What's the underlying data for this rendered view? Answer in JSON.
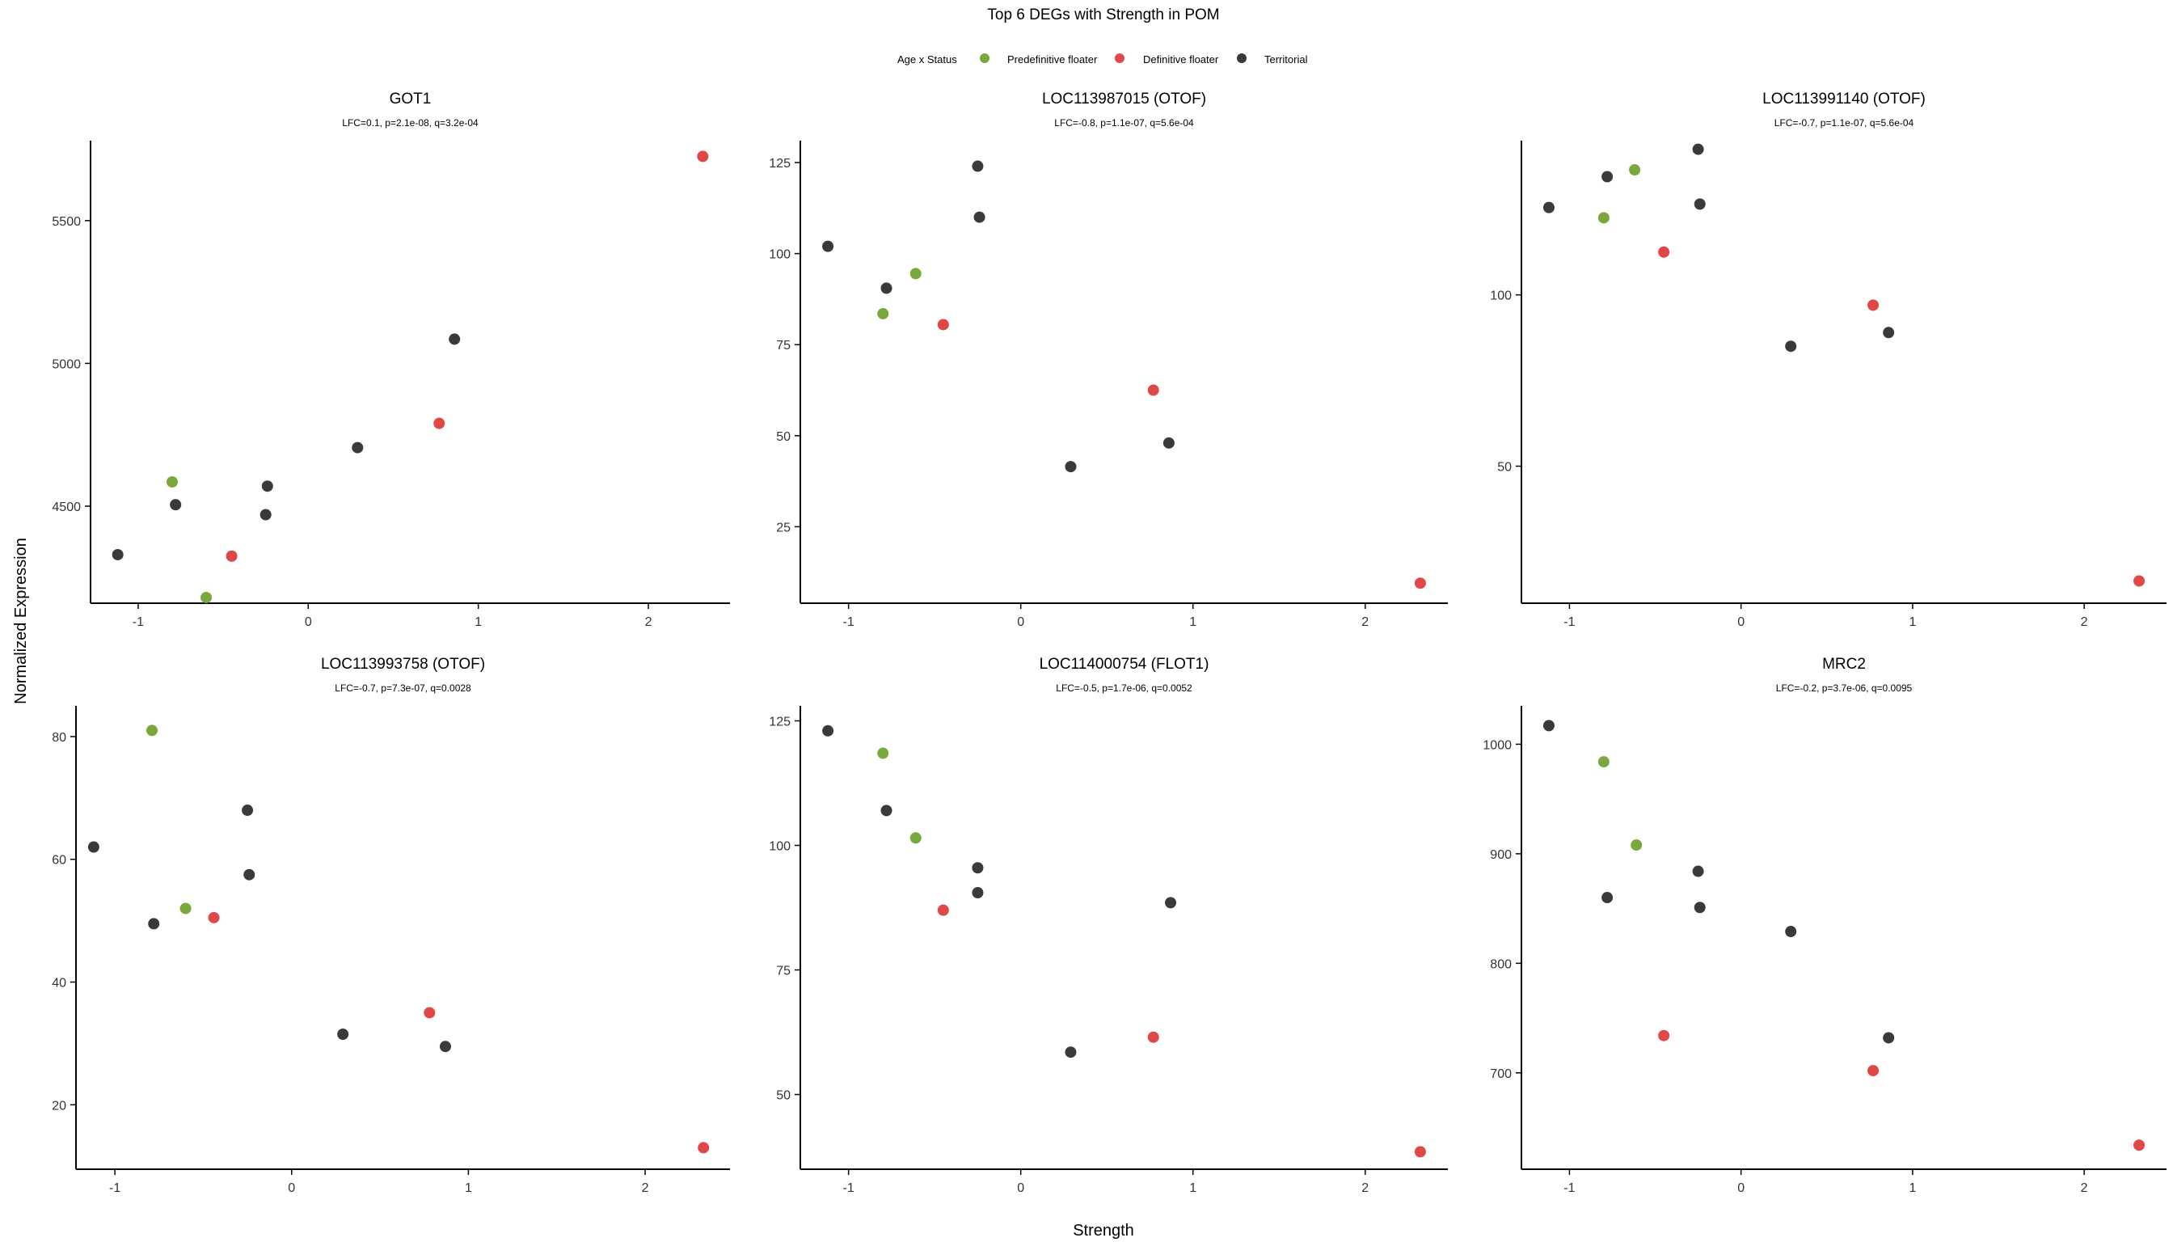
{
  "figure": {
    "title": "Top 6 DEGs with Strength in POM",
    "xlabel": "Strength",
    "ylabel": "Normalized Expression"
  },
  "legend": {
    "title": "Age x Status",
    "entries": [
      {
        "label": "Predefinitive floater",
        "color": "#7aa83d"
      },
      {
        "label": "Definitive floater",
        "color": "#e04848"
      },
      {
        "label": "Territorial",
        "color": "#3a3a3a"
      }
    ]
  },
  "colors": {
    "axis": "#000000",
    "point_stroke": "none"
  },
  "chart_data": [
    {
      "type": "scatter",
      "title": "GOT1",
      "subtitle": "LFC=0.1, p=2.1e-08, q=3.2e-04",
      "xlim": [
        -1.28,
        2.48
      ],
      "ylim": [
        4160,
        5780
      ],
      "xticks": [
        "-1",
        "0",
        "1",
        "2"
      ],
      "yticks": [
        "4500",
        "5000",
        "5500"
      ],
      "points": [
        {
          "x": -1.12,
          "y": 4330,
          "group": "Territorial"
        },
        {
          "x": -0.8,
          "y": 4585,
          "group": "Predefinitive floater"
        },
        {
          "x": -0.78,
          "y": 4505,
          "group": "Territorial"
        },
        {
          "x": -0.6,
          "y": 4180,
          "group": "Predefinitive floater"
        },
        {
          "x": -0.45,
          "y": 4325,
          "group": "Definitive floater"
        },
        {
          "x": -0.25,
          "y": 4470,
          "group": "Territorial"
        },
        {
          "x": -0.24,
          "y": 4570,
          "group": "Territorial"
        },
        {
          "x": 0.29,
          "y": 4705,
          "group": "Territorial"
        },
        {
          "x": 0.77,
          "y": 4790,
          "group": "Definitive floater"
        },
        {
          "x": 0.86,
          "y": 5085,
          "group": "Territorial"
        },
        {
          "x": 2.32,
          "y": 5725,
          "group": "Definitive floater"
        }
      ]
    },
    {
      "type": "scatter",
      "title": "LOC113987015 (OTOF)",
      "subtitle": "LFC=-0.8, p=1.1e-07, q=5.6e-04",
      "xlim": [
        -1.28,
        2.48
      ],
      "ylim": [
        4,
        131
      ],
      "xticks": [
        "-1",
        "0",
        "1",
        "2"
      ],
      "yticks": [
        "25",
        "50",
        "75",
        "100",
        "125"
      ],
      "points": [
        {
          "x": -1.12,
          "y": 102,
          "group": "Territorial"
        },
        {
          "x": -0.8,
          "y": 83.5,
          "group": "Predefinitive floater"
        },
        {
          "x": -0.78,
          "y": 90.5,
          "group": "Territorial"
        },
        {
          "x": -0.61,
          "y": 94.5,
          "group": "Predefinitive floater"
        },
        {
          "x": -0.45,
          "y": 80.5,
          "group": "Definitive floater"
        },
        {
          "x": -0.25,
          "y": 124,
          "group": "Territorial"
        },
        {
          "x": -0.24,
          "y": 110,
          "group": "Territorial"
        },
        {
          "x": 0.29,
          "y": 41.5,
          "group": "Territorial"
        },
        {
          "x": 0.77,
          "y": 62.5,
          "group": "Definitive floater"
        },
        {
          "x": 0.86,
          "y": 48,
          "group": "Territorial"
        },
        {
          "x": 2.32,
          "y": 9.5,
          "group": "Definitive floater"
        }
      ]
    },
    {
      "type": "scatter",
      "title": "LOC113991140 (OTOF)",
      "subtitle": "LFC=-0.7, p=1.1e-07, q=5.6e-04",
      "xlim": [
        -1.28,
        2.48
      ],
      "ylim": [
        10,
        145
      ],
      "xticks": [
        "-1",
        "0",
        "1",
        "2"
      ],
      "yticks": [
        "50",
        "100"
      ],
      "points": [
        {
          "x": -1.12,
          "y": 125.5,
          "group": "Territorial"
        },
        {
          "x": -0.8,
          "y": 122.5,
          "group": "Predefinitive floater"
        },
        {
          "x": -0.78,
          "y": 134.5,
          "group": "Territorial"
        },
        {
          "x": -0.62,
          "y": 136.5,
          "group": "Predefinitive floater"
        },
        {
          "x": -0.45,
          "y": 112.5,
          "group": "Definitive floater"
        },
        {
          "x": -0.25,
          "y": 142.5,
          "group": "Territorial"
        },
        {
          "x": -0.24,
          "y": 126.5,
          "group": "Territorial"
        },
        {
          "x": 0.29,
          "y": 85,
          "group": "Territorial"
        },
        {
          "x": 0.77,
          "y": 97,
          "group": "Definitive floater"
        },
        {
          "x": 0.86,
          "y": 89,
          "group": "Territorial"
        },
        {
          "x": 2.32,
          "y": 16.5,
          "group": "Definitive floater"
        }
      ]
    },
    {
      "type": "scatter",
      "title": "LOC113993758 (OTOF)",
      "subtitle": "LFC=-0.7, p=7.3e-07, q=0.0028",
      "xlim": [
        -1.22,
        2.48
      ],
      "ylim": [
        9.5,
        85
      ],
      "xticks": [
        "-1",
        "0",
        "1",
        "2"
      ],
      "yticks": [
        "20",
        "40",
        "60",
        "80"
      ],
      "points": [
        {
          "x": -1.12,
          "y": 62,
          "group": "Territorial"
        },
        {
          "x": -0.79,
          "y": 81,
          "group": "Predefinitive floater"
        },
        {
          "x": -0.78,
          "y": 49.5,
          "group": "Territorial"
        },
        {
          "x": -0.6,
          "y": 52,
          "group": "Predefinitive floater"
        },
        {
          "x": -0.44,
          "y": 50.5,
          "group": "Definitive floater"
        },
        {
          "x": -0.25,
          "y": 68,
          "group": "Territorial"
        },
        {
          "x": -0.24,
          "y": 57.5,
          "group": "Territorial"
        },
        {
          "x": 0.29,
          "y": 31.5,
          "group": "Territorial"
        },
        {
          "x": 0.78,
          "y": 35,
          "group": "Definitive floater"
        },
        {
          "x": 0.87,
          "y": 29.5,
          "group": "Territorial"
        },
        {
          "x": 2.33,
          "y": 13,
          "group": "Definitive floater"
        }
      ]
    },
    {
      "type": "scatter",
      "title": "LOC114000754 (FLOT1)",
      "subtitle": "LFC=-0.5, p=1.7e-06, q=0.0052",
      "xlim": [
        -1.28,
        2.48
      ],
      "ylim": [
        35,
        128
      ],
      "xticks": [
        "-1",
        "0",
        "1",
        "2"
      ],
      "yticks": [
        "50",
        "75",
        "100",
        "125"
      ],
      "points": [
        {
          "x": -1.12,
          "y": 123,
          "group": "Territorial"
        },
        {
          "x": -0.8,
          "y": 118.5,
          "group": "Predefinitive floater"
        },
        {
          "x": -0.78,
          "y": 107,
          "group": "Territorial"
        },
        {
          "x": -0.61,
          "y": 101.5,
          "group": "Predefinitive floater"
        },
        {
          "x": -0.45,
          "y": 87,
          "group": "Definitive floater"
        },
        {
          "x": -0.25,
          "y": 95.5,
          "group": "Territorial"
        },
        {
          "x": -0.25,
          "y": 90.5,
          "group": "Territorial"
        },
        {
          "x": 0.29,
          "y": 58.5,
          "group": "Territorial"
        },
        {
          "x": 0.77,
          "y": 61.5,
          "group": "Definitive floater"
        },
        {
          "x": 0.87,
          "y": 88.5,
          "group": "Territorial"
        },
        {
          "x": 2.32,
          "y": 38.5,
          "group": "Definitive floater"
        }
      ]
    },
    {
      "type": "scatter",
      "title": "MRC2",
      "subtitle": "LFC=-0.2, p=3.7e-06, q=0.0095",
      "xlim": [
        -1.28,
        2.48
      ],
      "ylim": [
        612,
        1035
      ],
      "xticks": [
        "-1",
        "0",
        "1",
        "2"
      ],
      "yticks": [
        "700",
        "800",
        "900",
        "1000"
      ],
      "points": [
        {
          "x": -1.12,
          "y": 1017,
          "group": "Territorial"
        },
        {
          "x": -0.8,
          "y": 984,
          "group": "Predefinitive floater"
        },
        {
          "x": -0.78,
          "y": 860,
          "group": "Territorial"
        },
        {
          "x": -0.61,
          "y": 908,
          "group": "Predefinitive floater"
        },
        {
          "x": -0.45,
          "y": 734,
          "group": "Definitive floater"
        },
        {
          "x": -0.25,
          "y": 884,
          "group": "Territorial"
        },
        {
          "x": -0.24,
          "y": 851,
          "group": "Territorial"
        },
        {
          "x": 0.29,
          "y": 829,
          "group": "Territorial"
        },
        {
          "x": 0.77,
          "y": 702,
          "group": "Definitive floater"
        },
        {
          "x": 0.86,
          "y": 732,
          "group": "Territorial"
        },
        {
          "x": 2.32,
          "y": 634,
          "group": "Definitive floater"
        }
      ]
    }
  ]
}
